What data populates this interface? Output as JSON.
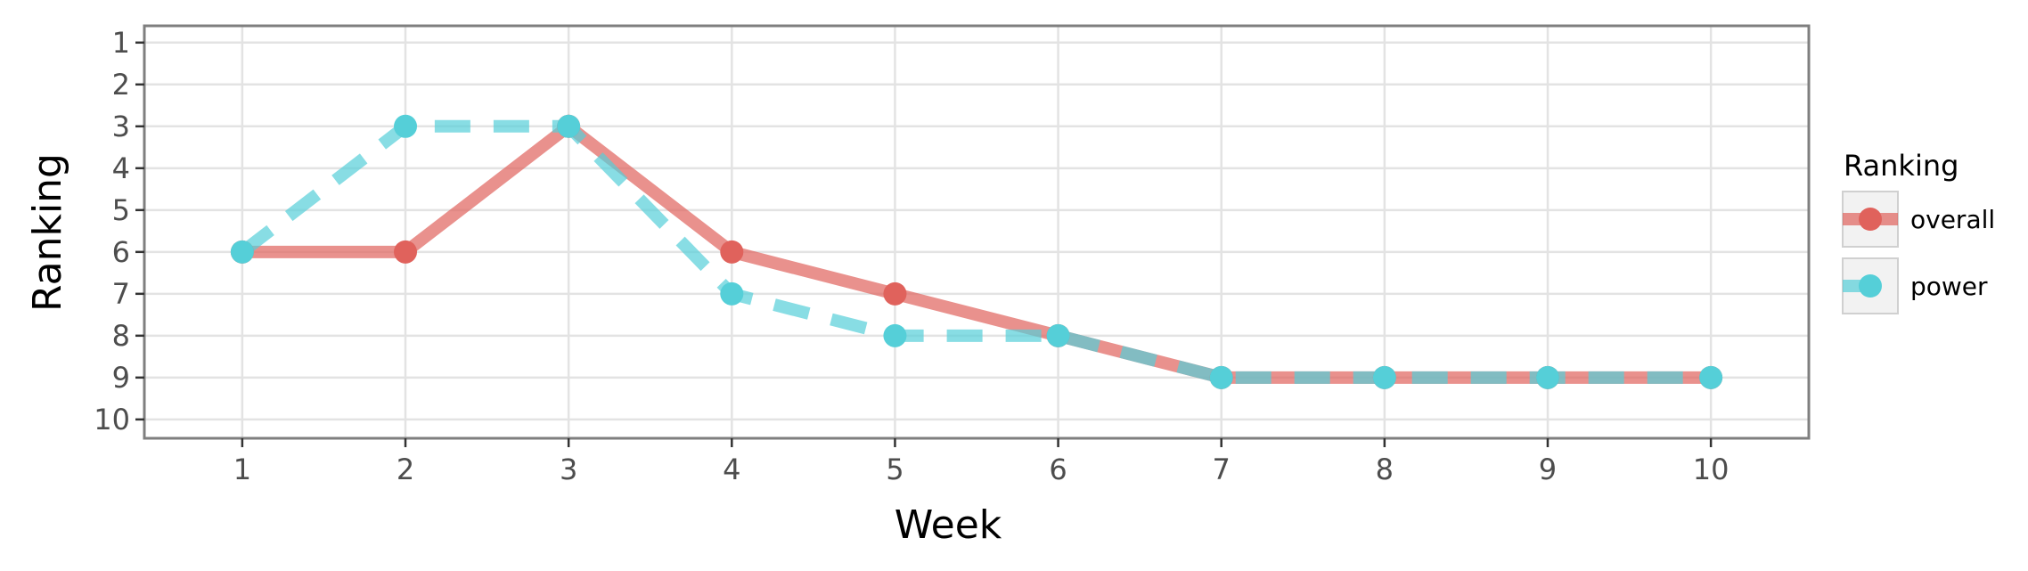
{
  "chart_data": {
    "type": "line",
    "title": "",
    "xlabel": "Week",
    "ylabel": "Ranking",
    "x": [
      1,
      2,
      3,
      4,
      5,
      6,
      7,
      8,
      9,
      10
    ],
    "x_ticks": [
      "1",
      "2",
      "3",
      "4",
      "5",
      "6",
      "7",
      "8",
      "9",
      "10"
    ],
    "y_ticks": [
      "1",
      "2",
      "3",
      "4",
      "5",
      "6",
      "7",
      "8",
      "9",
      "10"
    ],
    "xlim": [
      0.4,
      10.6
    ],
    "ylim": [
      10.45,
      0.6
    ],
    "y_reversed": true,
    "grid": true,
    "legend_title": "Ranking",
    "legend_position": "right",
    "series": [
      {
        "name": "overall",
        "values": [
          6,
          6,
          3,
          6,
          7,
          8,
          9,
          9,
          9,
          9
        ],
        "color": "#e0625c",
        "line_style": "solid"
      },
      {
        "name": "power",
        "values": [
          6,
          3,
          3,
          7,
          8,
          8,
          9,
          9,
          9,
          9
        ],
        "color": "#55cfd8",
        "line_style": "dashed"
      }
    ]
  }
}
